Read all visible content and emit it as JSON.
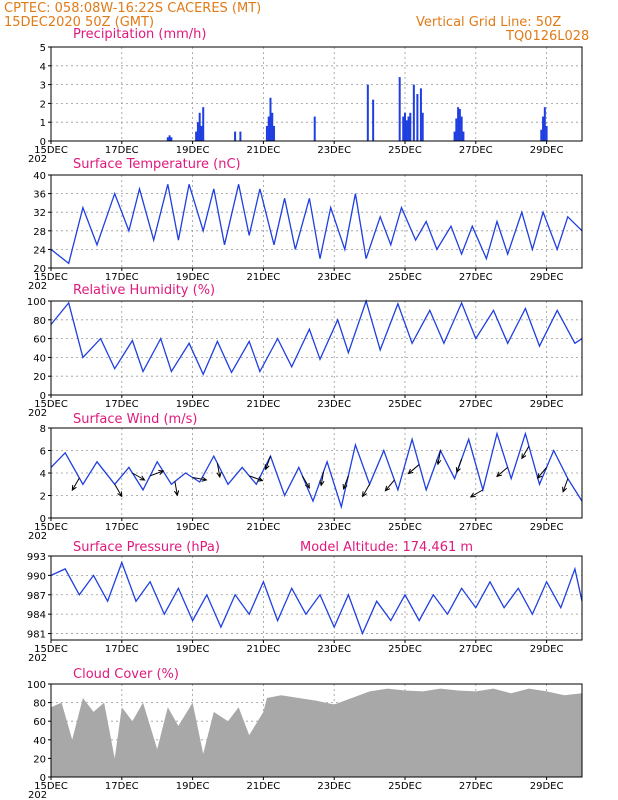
{
  "header": {
    "line1": "CPTEC:   058:08W-16:22S   CACERES (MT)",
    "line2_left": "15DEC2020 50Z (GMT)",
    "line2_right": "Vertical Grid Line: 50Z",
    "line3_right": "TQ0126L028"
  },
  "colors": {
    "header": "#e07b18",
    "title": "#e0197d",
    "series": "#1f3fe0",
    "cloud": "#a8a8a8",
    "arrow": "#000000"
  },
  "x_axis": {
    "tick_labels": [
      "15DEC",
      "17DEC",
      "19DEC",
      "21DEC",
      "23DEC",
      "25DEC",
      "27DEC",
      "29DEC"
    ],
    "tick_days": [
      0,
      2,
      4,
      6,
      8,
      10,
      12,
      14
    ],
    "year_fragment": "202",
    "range_days": [
      0,
      15
    ]
  },
  "chart_data": [
    {
      "id": "precip",
      "type": "bar",
      "title": "Precipitation (mm/h)",
      "ylim": [
        0,
        5
      ],
      "yticks": [
        0,
        1,
        2,
        3,
        4,
        5
      ],
      "x_unit": "days since 15DEC",
      "bars": [
        [
          3.3,
          0.2
        ],
        [
          3.35,
          0.3
        ],
        [
          3.4,
          0.2
        ],
        [
          4.1,
          0.5
        ],
        [
          4.15,
          1.0
        ],
        [
          4.2,
          1.5
        ],
        [
          4.25,
          0.8
        ],
        [
          4.3,
          1.8
        ],
        [
          5.2,
          0.5
        ],
        [
          5.35,
          0.5
        ],
        [
          6.1,
          0.8
        ],
        [
          6.15,
          1.3
        ],
        [
          6.2,
          2.3
        ],
        [
          6.25,
          1.5
        ],
        [
          6.3,
          0.8
        ],
        [
          7.45,
          1.3
        ],
        [
          8.95,
          3.0
        ],
        [
          9.1,
          2.2
        ],
        [
          9.85,
          3.4
        ],
        [
          9.95,
          1.3
        ],
        [
          10.0,
          1.5
        ],
        [
          10.05,
          1.1
        ],
        [
          10.1,
          1.3
        ],
        [
          10.15,
          1.5
        ],
        [
          10.25,
          3.0
        ],
        [
          10.35,
          2.5
        ],
        [
          10.45,
          2.8
        ],
        [
          10.5,
          1.5
        ],
        [
          11.4,
          0.5
        ],
        [
          11.45,
          1.2
        ],
        [
          11.5,
          1.8
        ],
        [
          11.55,
          1.7
        ],
        [
          11.6,
          1.3
        ],
        [
          11.65,
          0.5
        ],
        [
          13.85,
          0.6
        ],
        [
          13.9,
          1.3
        ],
        [
          13.95,
          1.8
        ],
        [
          14.0,
          0.8
        ]
      ]
    },
    {
      "id": "temp",
      "type": "line",
      "title": "Surface Temperature (nC)",
      "ylim": [
        20,
        40
      ],
      "yticks": [
        20,
        24,
        28,
        32,
        36,
        40
      ],
      "x": [
        0,
        0.5,
        0.9,
        1.3,
        1.8,
        2.2,
        2.5,
        2.9,
        3.3,
        3.6,
        3.9,
        4.3,
        4.6,
        4.9,
        5.3,
        5.6,
        5.9,
        6.3,
        6.6,
        6.9,
        7.3,
        7.6,
        7.9,
        8.3,
        8.6,
        8.9,
        9.3,
        9.6,
        9.9,
        10.3,
        10.6,
        10.9,
        11.3,
        11.6,
        11.9,
        12.3,
        12.6,
        12.9,
        13.3,
        13.6,
        13.9,
        14.3,
        14.6,
        15
      ],
      "y": [
        24,
        21,
        33,
        25,
        36,
        28,
        37,
        26,
        38,
        26,
        38,
        28,
        37,
        25,
        38,
        27,
        37,
        25,
        35,
        24,
        35,
        22,
        33,
        24,
        36,
        22,
        31,
        25,
        33,
        26,
        30,
        24,
        29,
        23,
        29,
        22,
        30,
        23,
        32,
        24,
        32,
        24,
        31,
        28
      ]
    },
    {
      "id": "rh",
      "type": "line",
      "title": "Relative Humidity (%)",
      "ylim": [
        0,
        100
      ],
      "yticks": [
        0,
        20,
        40,
        60,
        80,
        100
      ],
      "x": [
        0,
        0.5,
        0.9,
        1.4,
        1.8,
        2.3,
        2.6,
        3.1,
        3.4,
        3.9,
        4.3,
        4.7,
        5.1,
        5.6,
        5.9,
        6.4,
        6.8,
        7.3,
        7.6,
        8.1,
        8.4,
        8.9,
        9.3,
        9.8,
        10.2,
        10.7,
        11.1,
        11.6,
        12.0,
        12.5,
        12.9,
        13.4,
        13.8,
        14.3,
        14.8,
        15
      ],
      "y": [
        75,
        98,
        40,
        60,
        28,
        58,
        25,
        60,
        25,
        55,
        22,
        57,
        24,
        57,
        25,
        60,
        30,
        70,
        38,
        80,
        45,
        100,
        48,
        97,
        55,
        90,
        55,
        98,
        60,
        90,
        55,
        92,
        52,
        90,
        55,
        60
      ]
    },
    {
      "id": "wind",
      "type": "line",
      "title": "Surface Wind (m/s)",
      "ylim": [
        0,
        8
      ],
      "yticks": [
        0,
        2,
        4,
        6,
        8
      ],
      "x": [
        0,
        0.4,
        0.9,
        1.3,
        1.8,
        2.2,
        2.6,
        3.0,
        3.4,
        3.8,
        4.2,
        4.6,
        5.0,
        5.4,
        5.8,
        6.2,
        6.6,
        7.0,
        7.4,
        7.8,
        8.2,
        8.6,
        9.0,
        9.4,
        9.8,
        10.2,
        10.6,
        11.0,
        11.4,
        11.8,
        12.2,
        12.6,
        13.0,
        13.4,
        13.8,
        14.2,
        14.6,
        15
      ],
      "y": [
        4.5,
        5.8,
        3,
        5,
        3,
        4.5,
        2.5,
        5,
        3,
        4,
        3.2,
        5.5,
        3,
        4.5,
        3,
        5.5,
        2,
        4.5,
        1.5,
        5,
        1,
        6.5,
        3,
        6,
        2.5,
        7,
        2.5,
        6,
        3.5,
        7,
        2.5,
        7.5,
        3.5,
        7.5,
        3,
        6,
        3.5,
        1.5
      ],
      "arrows": [
        [
          0.8,
          -120
        ],
        [
          1.8,
          -60
        ],
        [
          2.3,
          -30
        ],
        [
          2.8,
          20
        ],
        [
          3.5,
          -80
        ],
        [
          4.0,
          -10
        ],
        [
          4.7,
          -80
        ],
        [
          5.6,
          -20
        ],
        [
          6.2,
          -110
        ],
        [
          7.1,
          -60
        ],
        [
          7.7,
          -100
        ],
        [
          8.4,
          -110
        ],
        [
          9.0,
          -120
        ],
        [
          9.7,
          -130
        ],
        [
          10.4,
          -140
        ],
        [
          11.0,
          -100
        ],
        [
          11.6,
          -110
        ],
        [
          12.2,
          -150
        ],
        [
          12.9,
          -140
        ],
        [
          13.5,
          -120
        ],
        [
          14.0,
          -130
        ],
        [
          14.6,
          -110
        ]
      ]
    },
    {
      "id": "pres",
      "type": "line",
      "title": "Surface Pressure (hPa)",
      "annotation": "Model Altitude: 174.461 m",
      "ylim": [
        980,
        993
      ],
      "yticks": [
        981,
        984,
        987,
        990,
        993
      ],
      "x": [
        0,
        0.4,
        0.8,
        1.2,
        1.6,
        2.0,
        2.4,
        2.8,
        3.2,
        3.6,
        4.0,
        4.4,
        4.8,
        5.2,
        5.6,
        6.0,
        6.4,
        6.8,
        7.2,
        7.6,
        8.0,
        8.4,
        8.8,
        9.2,
        9.6,
        10.0,
        10.4,
        10.8,
        11.2,
        11.6,
        12.0,
        12.4,
        12.8,
        13.2,
        13.6,
        14.0,
        14.4,
        14.8,
        15
      ],
      "y": [
        990,
        991,
        987,
        990,
        986,
        992,
        986,
        989,
        984,
        988,
        983,
        987,
        982,
        987,
        984,
        989,
        983,
        988,
        984,
        987,
        982,
        987,
        981,
        986,
        983,
        987,
        983,
        987,
        984,
        988,
        985,
        989,
        985,
        988,
        984,
        989,
        985,
        991,
        986
      ]
    },
    {
      "id": "cloud",
      "type": "area",
      "title": "Cloud Cover (%)",
      "ylim": [
        0,
        100
      ],
      "yticks": [
        0,
        20,
        40,
        60,
        80,
        100
      ],
      "x": [
        0,
        0.3,
        0.6,
        0.9,
        1.2,
        1.5,
        1.8,
        2.0,
        2.3,
        2.6,
        3.0,
        3.3,
        3.6,
        4.0,
        4.3,
        4.6,
        5.0,
        5.3,
        5.6,
        6.0,
        6.1,
        6.5,
        7.0,
        7.5,
        8.0,
        8.5,
        9.0,
        9.5,
        10.0,
        10.5,
        11.0,
        11.5,
        12.0,
        12.5,
        13.0,
        13.5,
        14.0,
        14.5,
        15
      ],
      "y": [
        75,
        80,
        40,
        85,
        70,
        80,
        20,
        75,
        60,
        80,
        30,
        75,
        55,
        80,
        25,
        70,
        60,
        75,
        45,
        70,
        85,
        88,
        85,
        82,
        78,
        85,
        92,
        95,
        93,
        92,
        95,
        93,
        92,
        95,
        90,
        95,
        92,
        88,
        90
      ]
    }
  ]
}
